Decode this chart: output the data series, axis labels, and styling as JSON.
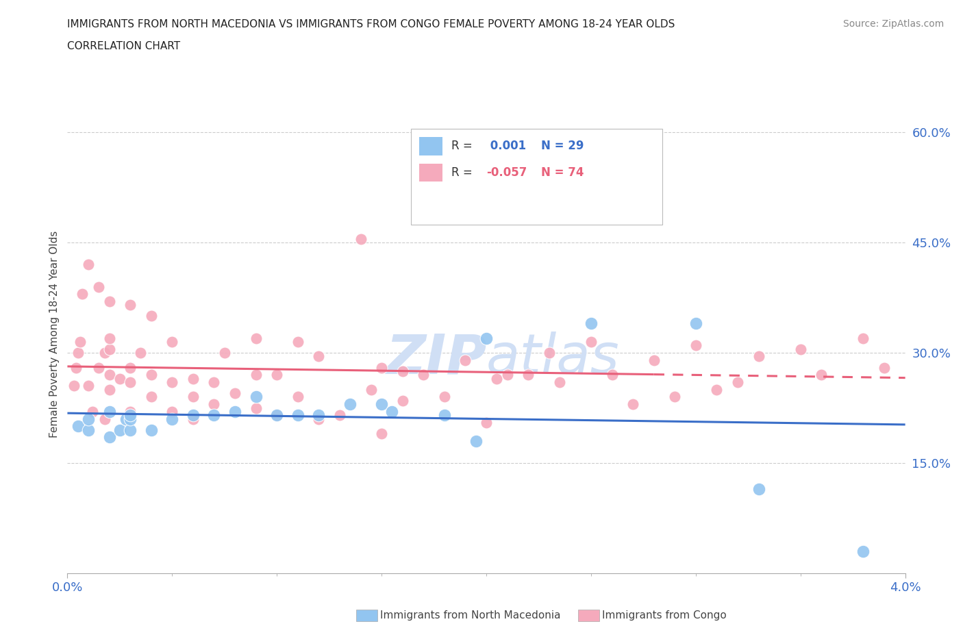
{
  "title_line1": "IMMIGRANTS FROM NORTH MACEDONIA VS IMMIGRANTS FROM CONGO FEMALE POVERTY AMONG 18-24 YEAR OLDS",
  "title_line2": "CORRELATION CHART",
  "source_text": "Source: ZipAtlas.com",
  "ylabel": "Female Poverty Among 18-24 Year Olds",
  "xlim": [
    0.0,
    0.04
  ],
  "ylim": [
    0.0,
    0.65
  ],
  "yticks": [
    0.15,
    0.3,
    0.45,
    0.6
  ],
  "ytick_labels": [
    "15.0%",
    "30.0%",
    "45.0%",
    "60.0%"
  ],
  "xticks": [
    0.0,
    0.04
  ],
  "xtick_labels": [
    "0.0%",
    "4.0%"
  ],
  "blue_R": 0.001,
  "blue_N": 29,
  "pink_R": -0.057,
  "pink_N": 74,
  "blue_color": "#92c5f0",
  "pink_color": "#f5aabc",
  "trend_blue_color": "#3a6ec8",
  "trend_pink_color": "#e8607a",
  "watermark_color": "#d0dff5",
  "legend_label_blue": "Immigrants from North Macedonia",
  "legend_label_pink": "Immigrants from Congo",
  "blue_scatter_x": [
    0.0005,
    0.001,
    0.001,
    0.002,
    0.002,
    0.0025,
    0.0028,
    0.003,
    0.003,
    0.003,
    0.004,
    0.005,
    0.006,
    0.007,
    0.008,
    0.009,
    0.01,
    0.011,
    0.012,
    0.0135,
    0.015,
    0.0155,
    0.018,
    0.02,
    0.0195,
    0.025,
    0.03,
    0.033,
    0.038
  ],
  "blue_scatter_y": [
    0.2,
    0.195,
    0.21,
    0.185,
    0.22,
    0.195,
    0.21,
    0.195,
    0.21,
    0.215,
    0.195,
    0.21,
    0.215,
    0.215,
    0.22,
    0.24,
    0.215,
    0.215,
    0.215,
    0.23,
    0.23,
    0.22,
    0.215,
    0.32,
    0.18,
    0.34,
    0.34,
    0.115,
    0.03
  ],
  "pink_scatter_x": [
    0.0003,
    0.0004,
    0.0005,
    0.0006,
    0.0007,
    0.001,
    0.001,
    0.0012,
    0.0015,
    0.0015,
    0.0018,
    0.0018,
    0.002,
    0.002,
    0.002,
    0.002,
    0.002,
    0.0025,
    0.003,
    0.003,
    0.003,
    0.003,
    0.0035,
    0.004,
    0.004,
    0.004,
    0.005,
    0.005,
    0.005,
    0.006,
    0.006,
    0.006,
    0.007,
    0.007,
    0.0075,
    0.008,
    0.009,
    0.009,
    0.009,
    0.01,
    0.01,
    0.011,
    0.011,
    0.012,
    0.012,
    0.013,
    0.014,
    0.0145,
    0.015,
    0.015,
    0.016,
    0.016,
    0.017,
    0.018,
    0.019,
    0.02,
    0.0205,
    0.021,
    0.022,
    0.023,
    0.0235,
    0.025,
    0.026,
    0.027,
    0.028,
    0.029,
    0.03,
    0.031,
    0.032,
    0.033,
    0.035,
    0.036,
    0.038,
    0.039
  ],
  "pink_scatter_y": [
    0.255,
    0.28,
    0.3,
    0.315,
    0.38,
    0.255,
    0.42,
    0.22,
    0.28,
    0.39,
    0.21,
    0.3,
    0.25,
    0.27,
    0.305,
    0.32,
    0.37,
    0.265,
    0.22,
    0.26,
    0.28,
    0.365,
    0.3,
    0.24,
    0.27,
    0.35,
    0.22,
    0.26,
    0.315,
    0.21,
    0.24,
    0.265,
    0.23,
    0.26,
    0.3,
    0.245,
    0.225,
    0.27,
    0.32,
    0.215,
    0.27,
    0.24,
    0.315,
    0.21,
    0.295,
    0.215,
    0.455,
    0.25,
    0.19,
    0.28,
    0.235,
    0.275,
    0.27,
    0.24,
    0.29,
    0.205,
    0.265,
    0.27,
    0.27,
    0.3,
    0.26,
    0.315,
    0.27,
    0.23,
    0.29,
    0.24,
    0.31,
    0.25,
    0.26,
    0.295,
    0.305,
    0.27,
    0.32,
    0.28
  ]
}
